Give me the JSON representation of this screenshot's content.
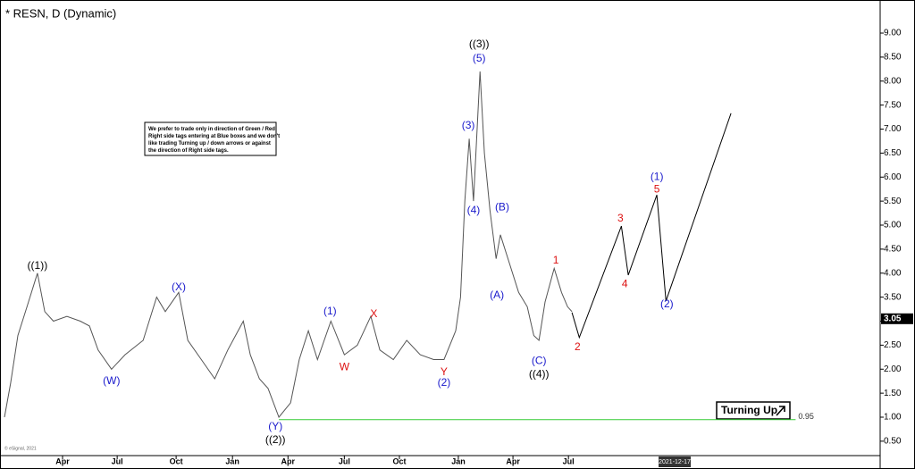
{
  "chart_data": {
    "type": "line",
    "title": "* RESN, D (Dynamic)",
    "note": [
      "We prefer to trade only in direction of Green / Red",
      "Right side tags entering at Blue boxes and we don't",
      "like trading Turning up / down arrows or against",
      "the direction of Right side tags."
    ],
    "series": [
      {
        "name": "RESN",
        "color": "#555555",
        "x": [
          0,
          1.4,
          3.1,
          5.2,
          7.6,
          9.3,
          11.3,
          14.4,
          17.5,
          19.6,
          21.6,
          24.7,
          27.8,
          32,
          35.1,
          37.1,
          40.2,
          42.3,
          45.4,
          48.5,
          51.5,
          55.1,
          56.7,
          58.8,
          60.8,
          63.3,
          66,
          68,
          70.1,
          72.2,
          75.3,
          78.4,
          81.4,
          84.5,
          86.6,
          89.7,
          92.8,
          95.9,
          99,
          101.4,
          104.1,
          105.2,
          106.2,
          107.2,
          108.2,
          109.7,
          110.7,
          112,
          113.4,
          114.4,
          116.5,
          118.6,
          120.6,
          122.1,
          123.3,
          124.7,
          126.8,
          128.5,
          129.9,
          130.9
        ],
        "values": [
          1.0,
          1.7,
          2.7,
          3.3,
          4.0,
          3.2,
          3.0,
          3.1,
          3.0,
          2.9,
          2.4,
          2.0,
          2.3,
          2.6,
          3.5,
          3.2,
          3.6,
          2.6,
          2.2,
          1.8,
          2.4,
          3.0,
          2.3,
          1.8,
          1.6,
          1.0,
          1.3,
          2.2,
          2.8,
          2.2,
          3.0,
          2.3,
          2.5,
          3.1,
          2.4,
          2.2,
          2.6,
          2.3,
          2.2,
          2.2,
          2.8,
          3.5,
          5.5,
          6.8,
          5.5,
          8.2,
          6.5,
          5.3,
          4.3,
          4.8,
          4.2,
          3.6,
          3.3,
          2.7,
          2.6,
          3.4,
          4.1,
          3.6,
          3.3,
          3.2
        ]
      },
      {
        "name": "Projection",
        "color": "#000000",
        "x": [
          130.9,
          132.6,
          142.3,
          143.9,
          150.5,
          152.6,
          167.6
        ],
        "values": [
          3.18,
          2.66,
          4.98,
          3.96,
          5.63,
          3.42,
          7.33
        ]
      }
    ],
    "level": {
      "value": 0.95,
      "x": [
        63.3,
        182.5
      ],
      "color": "#33cc33"
    },
    "last_price": 3.05,
    "signal": "Turning Up",
    "date_marker": {
      "x": 154.6,
      "label": "2021-12-17"
    },
    "copyright": "© eSignal, 2021",
    "annotations": [
      {
        "text": "((1))",
        "x": 7.6,
        "y": 4.15,
        "color": "#000000"
      },
      {
        "text": "(W)",
        "x": 24.7,
        "y": 1.75,
        "color": "#1a1acc"
      },
      {
        "text": "(X)",
        "x": 40.2,
        "y": 3.7,
        "color": "#1a1acc"
      },
      {
        "text": "(Y)",
        "x": 62.5,
        "y": 0.8,
        "color": "#1a1acc"
      },
      {
        "text": "((2))",
        "x": 62.5,
        "y": 0.52,
        "color": "#000000"
      },
      {
        "text": "(1)",
        "x": 75.1,
        "y": 3.2,
        "color": "#1a1acc"
      },
      {
        "text": "W",
        "x": 78.4,
        "y": 2.04,
        "color": "#dd1111"
      },
      {
        "text": "X",
        "x": 85.2,
        "y": 3.14,
        "color": "#dd1111"
      },
      {
        "text": "Y",
        "x": 101.4,
        "y": 1.93,
        "color": "#dd1111"
      },
      {
        "text": "(2)",
        "x": 101.4,
        "y": 1.71,
        "color": "#1a1acc"
      },
      {
        "text": "((3))",
        "x": 109.5,
        "y": 8.76,
        "color": "#000000"
      },
      {
        "text": "(5)",
        "x": 109.5,
        "y": 8.46,
        "color": "#1a1acc"
      },
      {
        "text": "(3)",
        "x": 107,
        "y": 7.07,
        "color": "#1a1acc"
      },
      {
        "text": "(4)",
        "x": 108.2,
        "y": 5.3,
        "color": "#1a1acc"
      },
      {
        "text": "(B)",
        "x": 114.8,
        "y": 5.37,
        "color": "#1a1acc"
      },
      {
        "text": "(A)",
        "x": 113.6,
        "y": 3.53,
        "color": "#1a1acc"
      },
      {
        "text": "(C)",
        "x": 123.3,
        "y": 2.17,
        "color": "#1a1acc"
      },
      {
        "text": "((4))",
        "x": 123.3,
        "y": 1.89,
        "color": "#000000"
      },
      {
        "text": "1",
        "x": 127.2,
        "y": 4.26,
        "color": "#dd1111"
      },
      {
        "text": "2",
        "x": 132.2,
        "y": 2.45,
        "color": "#dd1111"
      },
      {
        "text": "3",
        "x": 142.1,
        "y": 5.13,
        "color": "#dd1111"
      },
      {
        "text": "4",
        "x": 143.1,
        "y": 3.77,
        "color": "#dd1111"
      },
      {
        "text": "5",
        "x": 150.5,
        "y": 5.74,
        "color": "#dd1111"
      },
      {
        "text": "(1)",
        "x": 150.5,
        "y": 6.0,
        "color": "#1a1acc"
      },
      {
        "text": "(2)",
        "x": 152.8,
        "y": 3.35,
        "color": "#1a1acc"
      }
    ],
    "xlim": [
      0,
      202
    ],
    "xticks": [
      {
        "value": 13.4,
        "label": "Apr"
      },
      {
        "value": 26,
        "label": "Jul"
      },
      {
        "value": 39.6,
        "label": "Oct"
      },
      {
        "value": 52.6,
        "label": "Jan"
      },
      {
        "value": 65.4,
        "label": "Apr"
      },
      {
        "value": 78.4,
        "label": "Jul"
      },
      {
        "value": 91.1,
        "label": "Oct"
      },
      {
        "value": 104.7,
        "label": "Jan"
      },
      {
        "value": 117.3,
        "label": "Apr"
      },
      {
        "value": 130.1,
        "label": "Jul"
      }
    ],
    "ylim": [
      0.2,
      9.54
    ],
    "yticks": [
      {
        "value": 0.5,
        "label": "0.50"
      },
      {
        "value": 1,
        "label": "1.00"
      },
      {
        "value": 1.5,
        "label": "1.50"
      },
      {
        "value": 2,
        "label": "2.00"
      },
      {
        "value": 2.5,
        "label": "2.50"
      },
      {
        "value": 3,
        "label": "3.00"
      },
      {
        "value": 3.5,
        "label": "3.50"
      },
      {
        "value": 4,
        "label": "4.00"
      },
      {
        "value": 4.5,
        "label": "4.50"
      },
      {
        "value": 5,
        "label": "5.00"
      },
      {
        "value": 5.5,
        "label": "5.50"
      },
      {
        "value": 6,
        "label": "6.00"
      },
      {
        "value": 6.5,
        "label": "6.50"
      },
      {
        "value": 7,
        "label": "7.00"
      },
      {
        "value": 7.5,
        "label": "7.50"
      },
      {
        "value": 8,
        "label": "8.00"
      },
      {
        "value": 8.5,
        "label": "8.50"
      },
      {
        "value": 9,
        "label": "9.00"
      }
    ],
    "grid": false
  }
}
